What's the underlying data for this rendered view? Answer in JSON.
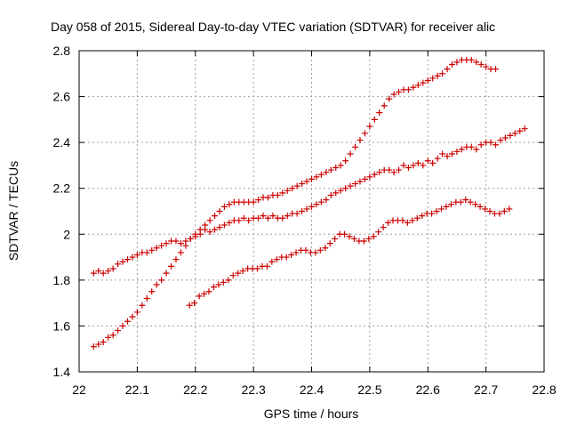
{
  "chart_data": {
    "type": "scatter",
    "title": "Day 058 of 2015, Sidereal Day-to-day VTEC variation (SDTVAR) for receiver alic",
    "xlabel": "GPS time / hours",
    "ylabel": "SDTVAR / TECUs",
    "xlim": [
      22,
      22.8
    ],
    "ylim": [
      1.4,
      2.8
    ],
    "xticks": [
      "22",
      "22.1",
      "22.2",
      "22.3",
      "22.4",
      "22.5",
      "22.6",
      "22.7",
      "22.8"
    ],
    "yticks": [
      "1.4",
      "1.6",
      "1.8",
      "2",
      "2.2",
      "2.4",
      "2.6",
      "2.8"
    ],
    "grid": true,
    "marker": "+",
    "color": "#cc0000",
    "series": [
      {
        "x_start": 22.025,
        "x_step": 0.008333,
        "values": [
          1.83,
          1.84,
          1.83,
          1.84,
          1.85,
          1.87,
          1.88,
          1.89,
          1.9,
          1.91,
          1.92,
          1.92,
          1.93,
          1.94,
          1.95,
          1.96,
          1.97,
          1.97,
          1.96,
          1.97,
          1.98,
          1.99,
          2.0,
          2.02,
          2.01,
          2.02,
          2.03,
          2.04,
          2.05,
          2.06,
          2.06,
          2.07,
          2.06,
          2.07,
          2.07,
          2.08,
          2.07,
          2.08,
          2.07,
          2.07,
          2.08,
          2.09,
          2.09,
          2.1,
          2.11,
          2.12,
          2.13,
          2.14,
          2.15,
          2.17,
          2.18,
          2.19,
          2.2,
          2.21,
          2.22,
          2.23,
          2.24,
          2.25,
          2.26,
          2.27,
          2.28,
          2.28,
          2.27,
          2.28,
          2.3,
          2.29,
          2.3,
          2.31,
          2.3,
          2.32,
          2.31,
          2.33,
          2.35,
          2.34,
          2.35,
          2.36,
          2.37,
          2.38,
          2.38,
          2.37,
          2.39,
          2.4,
          2.4,
          2.39,
          2.41,
          2.42,
          2.43,
          2.44,
          2.45,
          2.46
        ]
      },
      {
        "x_start": 22.025,
        "x_step": 0.008333,
        "values": [
          1.51,
          1.52,
          1.53,
          1.55,
          1.56,
          1.58,
          1.6,
          1.62,
          1.64,
          1.66,
          1.69,
          1.72,
          1.75,
          1.78,
          1.8,
          1.83,
          1.86,
          1.89,
          1.92,
          1.95,
          1.98,
          2.0,
          2.02,
          2.04,
          2.06,
          2.08,
          2.1,
          2.12,
          2.13,
          2.14,
          2.14,
          2.14,
          2.14,
          2.14,
          2.15,
          2.16,
          2.16,
          2.17,
          2.17,
          2.18,
          2.19,
          2.2,
          2.21,
          2.22,
          2.23,
          2.24,
          2.25,
          2.26,
          2.27,
          2.28,
          2.29,
          2.3,
          2.32,
          2.35,
          2.38,
          2.41,
          2.44,
          2.47,
          2.5,
          2.53,
          2.56,
          2.59,
          2.61,
          2.62,
          2.63,
          2.63,
          2.64,
          2.65,
          2.66,
          2.67,
          2.68,
          2.69,
          2.7,
          2.72,
          2.74,
          2.75,
          2.76,
          2.76,
          2.76,
          2.75,
          2.74,
          2.73,
          2.72,
          2.72
        ]
      },
      {
        "x_start": 22.19,
        "x_step": 0.008333,
        "values": [
          1.69,
          1.7,
          1.73,
          1.74,
          1.75,
          1.77,
          1.78,
          1.79,
          1.8,
          1.82,
          1.83,
          1.84,
          1.85,
          1.85,
          1.85,
          1.86,
          1.86,
          1.88,
          1.89,
          1.9,
          1.9,
          1.91,
          1.92,
          1.93,
          1.93,
          1.92,
          1.92,
          1.93,
          1.94,
          1.96,
          1.98,
          2.0,
          2.0,
          1.99,
          1.98,
          1.97,
          1.97,
          1.98,
          1.99,
          2.01,
          2.03,
          2.05,
          2.06,
          2.06,
          2.06,
          2.05,
          2.06,
          2.07,
          2.08,
          2.09,
          2.09,
          2.1,
          2.11,
          2.12,
          2.13,
          2.14,
          2.14,
          2.15,
          2.14,
          2.13,
          2.12,
          2.11,
          2.1,
          2.09,
          2.09,
          2.1,
          2.11
        ]
      }
    ]
  }
}
